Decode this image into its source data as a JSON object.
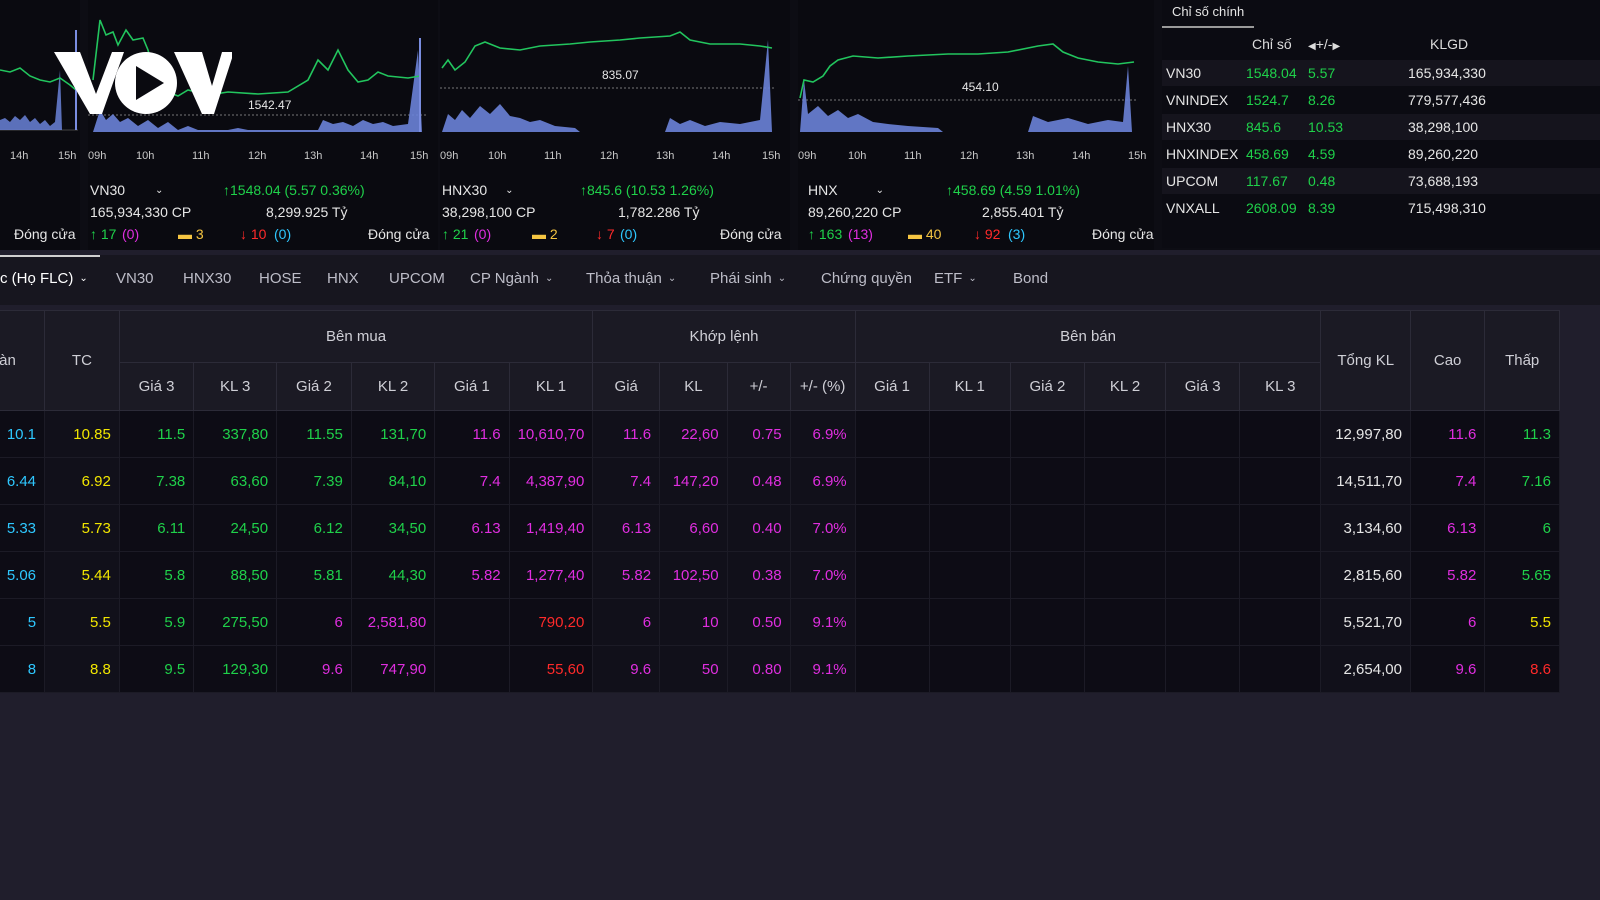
{
  "brand": {
    "logo_text": "VOV"
  },
  "mini_charts": [
    {
      "id": "vn30",
      "price_label": "1542.47",
      "times": [
        "09h",
        "10h",
        "11h",
        "12h",
        "13h",
        "14h",
        "15h"
      ],
      "name": "VN30",
      "volume": "165,934,330 CP",
      "change": "↑1548.04 (5.57  0.36%)",
      "value": "8,299.925 Tỷ",
      "up": "↑ 17",
      "up_ceil": "(0)",
      "flat": "3",
      "down": "↓ 10",
      "down_floor": "(0)",
      "status": "Đóng cửa"
    },
    {
      "id": "hnx30",
      "price_label": "835.07",
      "times": [
        "09h",
        "10h",
        "11h",
        "12h",
        "13h",
        "14h",
        "15h"
      ],
      "name": "HNX30",
      "volume": "38,298,100 CP",
      "change": "↑845.6 (10.53  1.26%)",
      "value": "1,782.286 Tỷ",
      "up": "↑ 21",
      "up_ceil": "(0)",
      "flat": "2",
      "down": "↓ 7",
      "down_floor": "(0)",
      "status": "Đóng cửa"
    },
    {
      "id": "hnx",
      "price_label": "454.10",
      "times": [
        "09h",
        "10h",
        "11h",
        "12h",
        "13h",
        "14h",
        "15h"
      ],
      "name": "HNX",
      "volume": "89,260,220 CP",
      "change": "↑458.69 (4.59  1.01%)",
      "value": "2,855.401 Tỷ",
      "up": "↑ 163",
      "up_ceil": "(13)",
      "flat": "40",
      "down": "↓ 92",
      "down_floor": "(3)",
      "status": "Đóng cửa"
    }
  ],
  "left_partial": {
    "times": [
      "14h",
      "15h"
    ],
    "status": "Đóng cửa"
  },
  "index_panel": {
    "tab": "Chỉ số chính",
    "headers": {
      "index": "Chỉ số",
      "change": "+/-",
      "volume": "KLGD"
    },
    "rows": [
      {
        "name": "VN30",
        "index": "1548.04",
        "change": "5.57",
        "volume": "165,934,330"
      },
      {
        "name": "VNINDEX",
        "index": "1524.7",
        "change": "8.26",
        "volume": "779,577,436"
      },
      {
        "name": "HNX30",
        "index": "845.6",
        "change": "10.53",
        "volume": "38,298,100"
      },
      {
        "name": "HNXINDEX",
        "index": "458.69",
        "change": "4.59",
        "volume": "89,260,220"
      },
      {
        "name": "UPCOM",
        "index": "117.67",
        "change": "0.48",
        "volume": "73,688,193"
      },
      {
        "name": "VNXALL",
        "index": "2608.09",
        "change": "8.39",
        "volume": "715,498,310"
      }
    ]
  },
  "tabs": [
    {
      "label": "c (Họ FLC)",
      "dropdown": true,
      "active": true
    },
    {
      "label": "VN30"
    },
    {
      "label": "HNX30"
    },
    {
      "label": "HOSE"
    },
    {
      "label": "HNX"
    },
    {
      "label": "UPCOM"
    },
    {
      "label": "CP Ngành",
      "dropdown": true
    },
    {
      "label": "Thỏa thuận",
      "dropdown": true
    },
    {
      "label": "Phái sinh",
      "dropdown": true
    },
    {
      "label": "Chứng quyền"
    },
    {
      "label": "ETF",
      "dropdown": true
    },
    {
      "label": "Bond"
    }
  ],
  "table": {
    "group_headers": {
      "san": "Sàn",
      "tc": "TC",
      "buy": "Bên mua",
      "match": "Khớp lệnh",
      "sell": "Bên bán",
      "total": "Tổng KL",
      "high": "Cao",
      "low": "Thấp"
    },
    "sub_headers": {
      "buy": [
        "Giá 3",
        "KL 3",
        "Giá 2",
        "KL 2",
        "Giá 1",
        "KL 1"
      ],
      "match": [
        "Giá",
        "KL",
        "+/-",
        "+/- (%)"
      ],
      "sell": [
        "Giá 1",
        "KL 1",
        "Giá 2",
        "KL 2",
        "Giá 3",
        "KL 3"
      ]
    },
    "rows": [
      {
        "san": "10.1",
        "tc": "10.85",
        "b3": "11.5",
        "kl3": "337,80",
        "b2": "11.55",
        "kl2": "131,70",
        "b1": "11.6",
        "kl1": "10,610,70",
        "gia": "11.6",
        "kl": "22,60",
        "chg": "0.75",
        "pct": "6.9%",
        "total": "12,997,80",
        "high": "11.6",
        "low": "11.3"
      },
      {
        "san": "6.44",
        "tc": "6.92",
        "b3": "7.38",
        "kl3": "63,60",
        "b2": "7.39",
        "kl2": "84,10",
        "b1": "7.4",
        "kl1": "4,387,90",
        "gia": "7.4",
        "kl": "147,20",
        "chg": "0.48",
        "pct": "6.9%",
        "total": "14,511,70",
        "high": "7.4",
        "low": "7.16"
      },
      {
        "san": "5.33",
        "tc": "5.73",
        "b3": "6.11",
        "kl3": "24,50",
        "b2": "6.12",
        "kl2": "34,50",
        "b1": "6.13",
        "kl1": "1,419,40",
        "gia": "6.13",
        "kl": "6,60",
        "chg": "0.40",
        "pct": "7.0%",
        "total": "3,134,60",
        "high": "6.13",
        "low": "6"
      },
      {
        "san": "5.06",
        "tc": "5.44",
        "b3": "5.8",
        "kl3": "88,50",
        "b2": "5.81",
        "kl2": "44,30",
        "b1": "5.82",
        "kl1": "1,277,40",
        "gia": "5.82",
        "kl": "102,50",
        "chg": "0.38",
        "pct": "7.0%",
        "total": "2,815,60",
        "high": "5.82",
        "low": "5.65"
      },
      {
        "san": "5",
        "tc": "5.5",
        "b3": "5.9",
        "kl3": "275,50",
        "b2": "6",
        "kl2": "2,581,80",
        "b1": "",
        "kl1": "790,20",
        "gia": "6",
        "kl": "10",
        "chg": "0.50",
        "pct": "9.1%",
        "total": "5,521,70",
        "high": "6",
        "low": "5.5"
      },
      {
        "san": "8",
        "tc": "8.8",
        "b3": "9.5",
        "kl3": "129,30",
        "b2": "9.6",
        "kl2": "747,90",
        "b1": "",
        "kl1": "55,60",
        "gia": "9.6",
        "kl": "50",
        "chg": "0.80",
        "pct": "9.1%",
        "total": "2,654,00",
        "high": "9.6",
        "low": "8.6"
      }
    ],
    "row_colors": [
      {
        "b1": "#e02ee0",
        "kl1": "#e02ee0",
        "match": "#e02ee0",
        "high": "#e02ee0",
        "low": "#1fd14a",
        "b2": "#1fd14a",
        "kl2": "#1fd14a"
      },
      {
        "b1": "#e02ee0",
        "kl1": "#e02ee0",
        "match": "#e02ee0",
        "high": "#e02ee0",
        "low": "#1fd14a",
        "b2": "#1fd14a",
        "kl2": "#1fd14a"
      },
      {
        "b1": "#e02ee0",
        "kl1": "#e02ee0",
        "match": "#e02ee0",
        "high": "#e02ee0",
        "low": "#1fd14a",
        "b2": "#1fd14a",
        "kl2": "#1fd14a"
      },
      {
        "b1": "#e02ee0",
        "kl1": "#e02ee0",
        "match": "#e02ee0",
        "high": "#e02ee0",
        "low": "#1fd14a",
        "b2": "#1fd14a",
        "kl2": "#1fd14a"
      },
      {
        "b1": "#e02ee0",
        "kl1": "#ff2a2a",
        "match": "#e02ee0",
        "high": "#e02ee0",
        "low": "#f2e600",
        "b2": "#e02ee0",
        "kl2": "#e02ee0"
      },
      {
        "b1": "#e02ee0",
        "kl1": "#ff2a2a",
        "match": "#e02ee0",
        "high": "#e02ee0",
        "low": "#ff2a2a",
        "b2": "#e02ee0",
        "kl2": "#e02ee0"
      }
    ]
  }
}
